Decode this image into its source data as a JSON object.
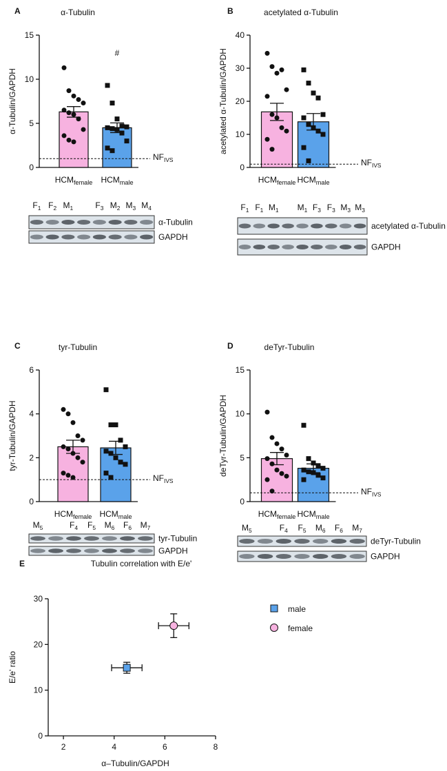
{
  "chart_data": [
    {
      "type": "bar",
      "panel": "A",
      "title": "α-Tubulin",
      "ylabel": "α-Tubulin/GAPDH",
      "categories": [
        {
          "text": "HCM",
          "sub": "female"
        },
        {
          "text": "HCM",
          "sub": "male"
        }
      ],
      "values": [
        6.3,
        4.5
      ],
      "errors": [
        0.6,
        0.55
      ],
      "colors": [
        "#f7b2e0",
        "#5aa2ea"
      ],
      "markers": [
        "circle",
        "square"
      ],
      "points": [
        [
          11.3,
          8.7,
          8.1,
          7.7,
          7.3,
          6.5,
          6.2,
          6.0,
          5.5,
          4.3,
          3.6,
          3.1,
          2.9
        ],
        [
          9.3,
          7.3,
          5.5,
          4.7,
          4.6,
          4.5,
          4.4,
          4.3,
          3.9,
          3.0,
          2.2,
          1.9
        ]
      ],
      "ylim": [
        0,
        15
      ],
      "yticks": [
        0,
        5,
        10,
        15
      ],
      "reference": {
        "value": 1,
        "label": {
          "text": "NF",
          "sub": "IVS"
        }
      },
      "annotation": "#",
      "blot": {
        "lanes": [
          {
            "text": "F",
            "sub": "1"
          },
          {
            "text": "F",
            "sub": "2"
          },
          {
            "text": "M",
            "sub": "1"
          },
          null,
          {
            "text": "F",
            "sub": "3"
          },
          {
            "text": "M",
            "sub": "2"
          },
          {
            "text": "M",
            "sub": "3"
          },
          {
            "text": "M",
            "sub": "4"
          }
        ],
        "bands": [
          "α-Tubulin",
          "GAPDH"
        ]
      }
    },
    {
      "type": "bar",
      "panel": "B",
      "title": "acetylated α-Tubulin",
      "ylabel": "acetylated α-Tubulin/GAPDH",
      "categories": [
        {
          "text": "HCM",
          "sub": "female"
        },
        {
          "text": "HCM",
          "sub": "male"
        }
      ],
      "values": [
        16.8,
        13.8
      ],
      "errors": [
        2.6,
        2.5
      ],
      "colors": [
        "#f7b2e0",
        "#5aa2ea"
      ],
      "markers": [
        "circle",
        "square"
      ],
      "points": [
        [
          34.5,
          30.5,
          28.5,
          29.5,
          23.5,
          21.5,
          16,
          15,
          12,
          11,
          8.5,
          5.5
        ],
        [
          29.5,
          25.5,
          22.5,
          21,
          16,
          15,
          13,
          12,
          11,
          10,
          6,
          2
        ]
      ],
      "ylim": [
        0,
        40
      ],
      "yticks": [
        0,
        10,
        20,
        30,
        40
      ],
      "reference": {
        "value": 1,
        "label": {
          "text": "NF",
          "sub": "IVS"
        }
      },
      "blot": {
        "lanes": [
          {
            "text": "F",
            "sub": "1"
          },
          {
            "text": "F",
            "sub": "1"
          },
          {
            "text": "M",
            "sub": "1"
          },
          null,
          {
            "text": "M",
            "sub": "1"
          },
          {
            "text": "F",
            "sub": "3"
          },
          {
            "text": "F",
            "sub": "3"
          },
          {
            "text": "M",
            "sub": "3"
          },
          {
            "text": "M",
            "sub": "3"
          }
        ],
        "bands": [
          "acetylated α-Tubulin",
          "GAPDH"
        ]
      }
    },
    {
      "type": "bar",
      "panel": "C",
      "title": "tyr-Tubulin",
      "ylabel": "tyr-Tubulin/GAPDH",
      "categories": [
        {
          "text": "HCM",
          "sub": "female"
        },
        {
          "text": "HCM",
          "sub": "male"
        }
      ],
      "values": [
        2.5,
        2.45
      ],
      "errors": [
        0.3,
        0.3
      ],
      "colors": [
        "#f7b2e0",
        "#5aa2ea"
      ],
      "markers": [
        "circle",
        "square"
      ],
      "points": [
        [
          4.2,
          4.0,
          3.6,
          3.0,
          2.8,
          2.5,
          2.4,
          2.2,
          2.0,
          1.8,
          1.3,
          1.2,
          1.1
        ],
        [
          5.1,
          3.5,
          3.5,
          2.8,
          2.5,
          2.3,
          2.2,
          2.0,
          1.8,
          1.7,
          1.3,
          1.1
        ]
      ],
      "ylim": [
        0,
        6
      ],
      "yticks": [
        0,
        2,
        4,
        6
      ],
      "reference": {
        "value": 1,
        "label": {
          "text": "NF",
          "sub": "IVS"
        }
      },
      "blot": {
        "lanes": [
          {
            "text": "M",
            "sub": "5"
          },
          null,
          {
            "text": "F",
            "sub": "4"
          },
          {
            "text": "F",
            "sub": "5"
          },
          {
            "text": "M",
            "sub": "6"
          },
          {
            "text": "F",
            "sub": "6"
          },
          {
            "text": "M",
            "sub": "7"
          }
        ],
        "bands": [
          "tyr-Tubulin",
          "GAPDH"
        ]
      }
    },
    {
      "type": "bar",
      "panel": "D",
      "title": "deTyr-Tubulin",
      "ylabel": "deTyr-Tubulin/GAPDH",
      "categories": [
        {
          "text": "HCM",
          "sub": "female"
        },
        {
          "text": "HCM",
          "sub": "male"
        }
      ],
      "values": [
        4.9,
        3.8
      ],
      "errors": [
        0.7,
        0.5
      ],
      "colors": [
        "#f7b2e0",
        "#5aa2ea"
      ],
      "markers": [
        "circle",
        "square"
      ],
      "points": [
        [
          10.2,
          7.3,
          6.6,
          6.0,
          5.3,
          4.9,
          4.3,
          3.6,
          3.2,
          2.9,
          2.5,
          1.2
        ],
        [
          8.7,
          4.9,
          4.4,
          4.1,
          3.8,
          3.6,
          3.4,
          3.3,
          3.0,
          2.7,
          2.5
        ]
      ],
      "ylim": [
        0,
        15
      ],
      "yticks": [
        0,
        5,
        10,
        15
      ],
      "reference": {
        "value": 1,
        "label": {
          "text": "NF",
          "sub": "IVS"
        }
      },
      "blot": {
        "lanes": [
          {
            "text": "M",
            "sub": "5"
          },
          null,
          {
            "text": "F",
            "sub": "4"
          },
          {
            "text": "F",
            "sub": "5"
          },
          {
            "text": "M",
            "sub": "6"
          },
          {
            "text": "F",
            "sub": "6"
          },
          {
            "text": "M",
            "sub": "7"
          }
        ],
        "bands": [
          "deTyr-Tubulin",
          "GAPDH"
        ]
      }
    },
    {
      "type": "scatter",
      "panel": "E",
      "title": "Tubulin correlation with E/e'",
      "xlabel": "α–Tubulin/GAPDH",
      "ylabel": "E/e' ratio",
      "series": [
        {
          "name": "male",
          "color": "#5aa2ea",
          "marker": "square",
          "x": [
            4.5
          ],
          "y": [
            14.9
          ],
          "xerr": [
            0.6
          ],
          "yerr": [
            1.2
          ]
        },
        {
          "name": "female",
          "color": "#f7b2e0",
          "marker": "circle",
          "x": [
            6.35
          ],
          "y": [
            24.1
          ],
          "xerr": [
            0.6
          ],
          "yerr": [
            2.6
          ]
        }
      ],
      "xlim": [
        1.4,
        8
      ],
      "xticks": [
        2,
        4,
        6,
        8
      ],
      "ylim": [
        0,
        30
      ],
      "yticks": [
        0,
        10,
        20,
        30
      ],
      "legend": "right"
    }
  ]
}
